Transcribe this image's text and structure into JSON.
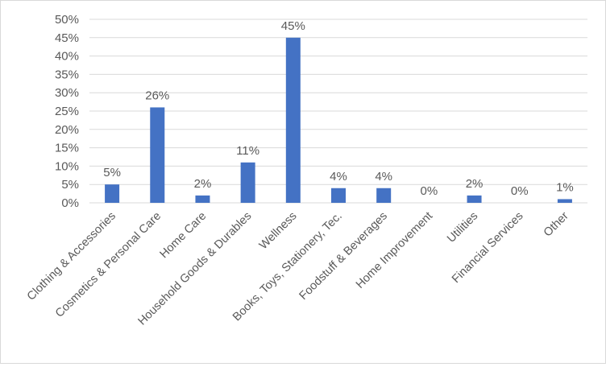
{
  "chart_data": {
    "type": "bar",
    "title": "",
    "xlabel": "",
    "ylabel": "",
    "categories": [
      "Clothing & Accessories",
      "Cosmetics & Personal Care",
      "Home Care",
      "Household Goods & Durables",
      "Wellness",
      "Books, Toys, Stationery, Tec.",
      "Foodstuff & Beverages",
      "Home Improvement",
      "Utilities",
      "Financial Services",
      "Other"
    ],
    "values": [
      5,
      26,
      2,
      11,
      45,
      4,
      4,
      0,
      2,
      0,
      1
    ],
    "data_labels": [
      "5%",
      "26%",
      "2%",
      "11%",
      "45%",
      "4%",
      "4%",
      "0%",
      "2%",
      "0%",
      "1%"
    ],
    "ylim": [
      0,
      50
    ],
    "y_ticks": [
      0,
      5,
      10,
      15,
      20,
      25,
      30,
      35,
      40,
      45,
      50
    ],
    "y_tick_labels": [
      "0%",
      "5%",
      "10%",
      "15%",
      "20%",
      "25%",
      "30%",
      "35%",
      "40%",
      "45%",
      "50%"
    ],
    "grid": true,
    "legend": "none",
    "bar_color": "#4472c4",
    "grid_color": "#d9d9d9",
    "text_color": "#595959"
  }
}
